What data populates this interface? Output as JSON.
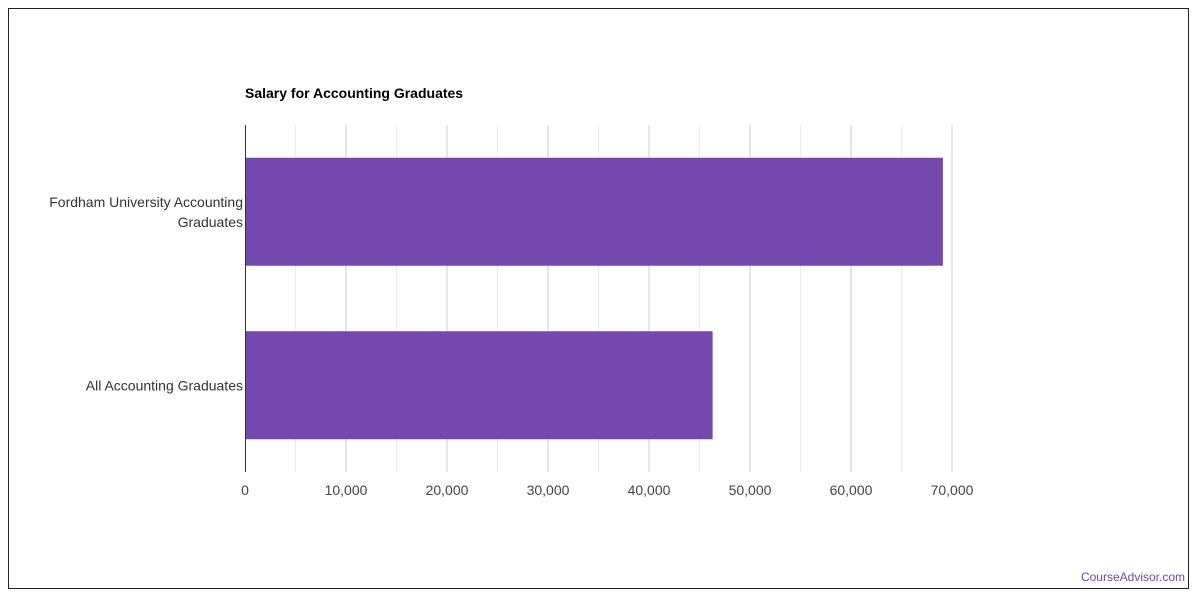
{
  "chart_data": {
    "type": "bar",
    "orientation": "horizontal",
    "title": "Salary for Accounting Graduates",
    "xlabel": "",
    "ylabel": "",
    "categories": [
      "Fordham University Accounting Graduates",
      "All Accounting Graduates"
    ],
    "category_lines": [
      [
        "Fordham University Accounting",
        "Graduates"
      ],
      [
        "All Accounting Graduates"
      ]
    ],
    "values": [
      69100,
      46300
    ],
    "xlim": [
      0,
      70000
    ],
    "xticks": [
      0,
      10000,
      20000,
      30000,
      40000,
      50000,
      60000,
      70000
    ],
    "xtick_labels": [
      "0",
      "10,000",
      "20,000",
      "30,000",
      "40,000",
      "50,000",
      "60,000",
      "70,000"
    ],
    "bar_color": "#7449ae",
    "grid": true,
    "legend": "none"
  },
  "footer": {
    "source": "CourseAdvisor.com"
  }
}
